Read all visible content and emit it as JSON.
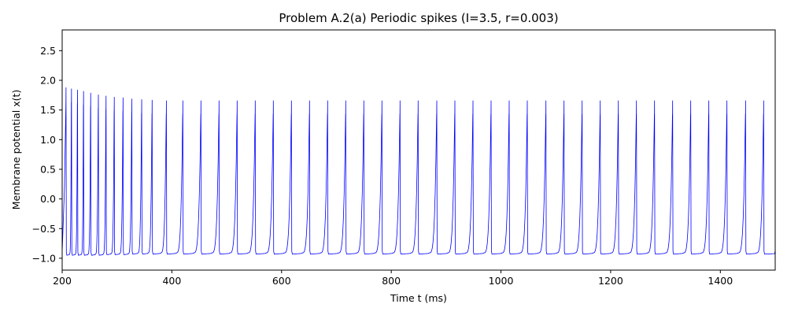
{
  "chart_data": {
    "type": "line",
    "title": "Problem A.2(a) Periodic spikes (I=3.5, r=0.003)",
    "xlabel": "Time t (ms)",
    "ylabel": "Membrane potential x(t)",
    "xlim": [
      200,
      1500
    ],
    "ylim": [
      -1.2,
      2.85
    ],
    "xticks": [
      200,
      400,
      600,
      800,
      1000,
      1200,
      1400
    ],
    "yticks": [
      -1.0,
      -0.5,
      0.0,
      0.5,
      1.0,
      1.5,
      2.0,
      2.5
    ],
    "ytick_labels": [
      "−1.0",
      "−0.5",
      "0.0",
      "0.5",
      "1.0",
      "1.5",
      "2.0",
      "2.5"
    ],
    "grid": false,
    "legend": "none",
    "series": [
      {
        "color": "#0000ff",
        "spike_times": [
          207,
          217,
          228,
          239,
          252,
          266,
          280,
          295,
          311,
          327,
          345,
          364,
          390,
          420,
          453,
          486,
          519,
          552,
          585,
          618,
          651,
          684,
          717,
          750,
          783,
          816,
          849,
          883,
          916,
          949,
          982,
          1015,
          1048,
          1082,
          1115,
          1148,
          1181,
          1214,
          1247,
          1280,
          1313,
          1346,
          1379,
          1412,
          1446,
          1479
        ],
        "spike_peaks": [
          1.88,
          1.86,
          1.84,
          1.82,
          1.79,
          1.76,
          1.74,
          1.72,
          1.71,
          1.69,
          1.68,
          1.67,
          1.66,
          1.66,
          1.66,
          1.66,
          1.66,
          1.66,
          1.66,
          1.66,
          1.66,
          1.66,
          1.66,
          1.66,
          1.66,
          1.66,
          1.66,
          1.66,
          1.66,
          1.66,
          1.66,
          1.66,
          1.66,
          1.66,
          1.66,
          1.66,
          1.66,
          1.66,
          1.66,
          1.66,
          1.66,
          1.66,
          1.66,
          1.66,
          1.66,
          1.66
        ],
        "trough_values": [
          -0.95,
          -0.95,
          -0.95,
          -0.95,
          -0.95,
          -0.95,
          -0.94,
          -0.94,
          -0.94,
          -0.93,
          -0.93,
          -0.93,
          -0.93,
          -0.93,
          -0.93,
          -0.93,
          -0.93,
          -0.93,
          -0.93,
          -0.93,
          -0.93,
          -0.93,
          -0.93,
          -0.93,
          -0.93,
          -0.93,
          -0.93,
          -0.93,
          -0.93,
          -0.93,
          -0.93,
          -0.93,
          -0.93,
          -0.93,
          -0.93,
          -0.93,
          -0.93,
          -0.93,
          -0.93,
          -0.93,
          -0.93,
          -0.93,
          -0.93,
          -0.93,
          -0.93,
          -0.93
        ],
        "end_value": -0.87
      }
    ]
  }
}
